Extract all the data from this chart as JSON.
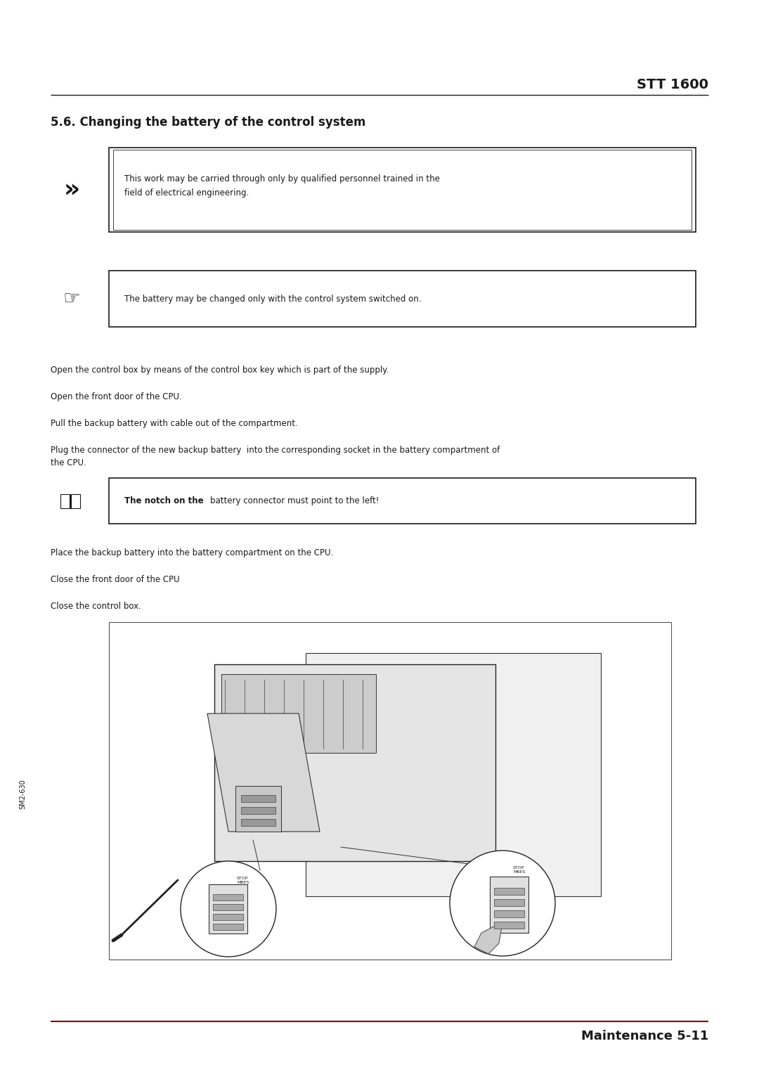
{
  "page_width": 10.8,
  "page_height": 15.25,
  "bg_color": "#ffffff",
  "text_color": "#1a1a1a",
  "header_text": "STT 1600",
  "section_title": "5.6. Changing the battery of the control system",
  "warning_box_text": "This work may be carried through only by qualified personnel trained in the\nfield of electrical engineering.",
  "note_box_text": "The battery may be changed only with the control system switched on.",
  "info_box_text_bold": "The notch on the ",
  "info_box_text_normal": "battery connector must point to the left!",
  "body_lines": [
    "Open the control box by means of the control box key which is part of the supply.",
    "Open the front door of the CPU.",
    "Pull the backup battery with cable out of the compartment.",
    "Plug the connector of the new backup battery  into the corresponding socket in the battery compartment of\nthe CPU."
  ],
  "body_lines2": [
    "Place the backup battery into the battery compartment on the CPU.",
    "Close the front door of the CPU",
    "Close the control box."
  ],
  "footer_text": "Maintenance 5-11",
  "footer_left_text": "SM2-630",
  "accent_color": "#8b0000",
  "font_size_header": 14,
  "font_size_section": 12,
  "font_size_body": 8.5,
  "font_size_footer": 13,
  "line_color": "#1a1a1a",
  "footer_line_color": "#8b0000"
}
